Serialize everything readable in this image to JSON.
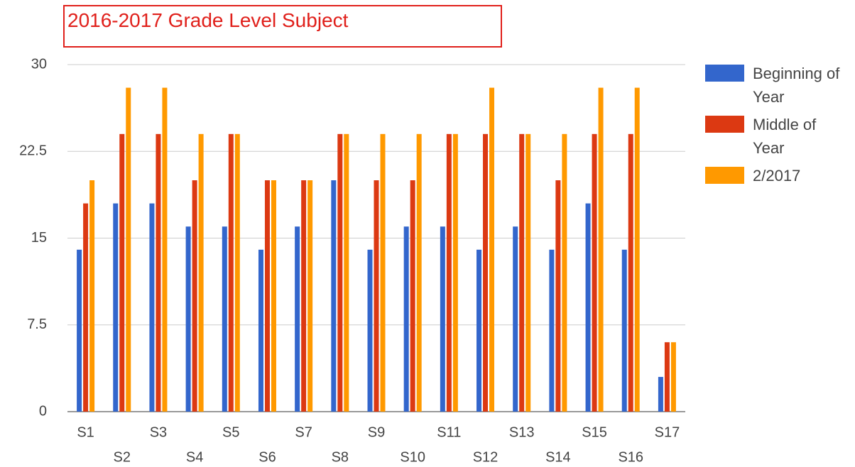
{
  "chart_data": {
    "type": "bar",
    "title": "2016-2017 Grade Level Subject",
    "categories": [
      "S1",
      "S2",
      "S3",
      "S4",
      "S5",
      "S6",
      "S7",
      "S8",
      "S9",
      "S10",
      "S11",
      "S12",
      "S13",
      "S14",
      "S15",
      "S16",
      "S17"
    ],
    "series": [
      {
        "name": "Beginning of Year",
        "color": "#3366cc",
        "values": [
          14,
          18,
          18,
          16,
          16,
          14,
          16,
          20,
          14,
          16,
          16,
          14,
          16,
          14,
          18,
          14,
          3
        ]
      },
      {
        "name": "Middle of Year",
        "color": "#dc3912",
        "values": [
          18,
          24,
          24,
          20,
          24,
          20,
          20,
          24,
          20,
          20,
          24,
          24,
          24,
          20,
          24,
          24,
          6
        ]
      },
      {
        "name": "2/2017",
        "color": "#ff9900",
        "values": [
          20,
          28,
          28,
          24,
          24,
          20,
          20,
          24,
          24,
          24,
          24,
          28,
          24,
          24,
          28,
          28,
          6
        ]
      }
    ],
    "ylim": [
      0,
      30
    ],
    "yticks": [
      0,
      7.5,
      15,
      22.5,
      30
    ],
    "grid": true,
    "legend": "right"
  }
}
